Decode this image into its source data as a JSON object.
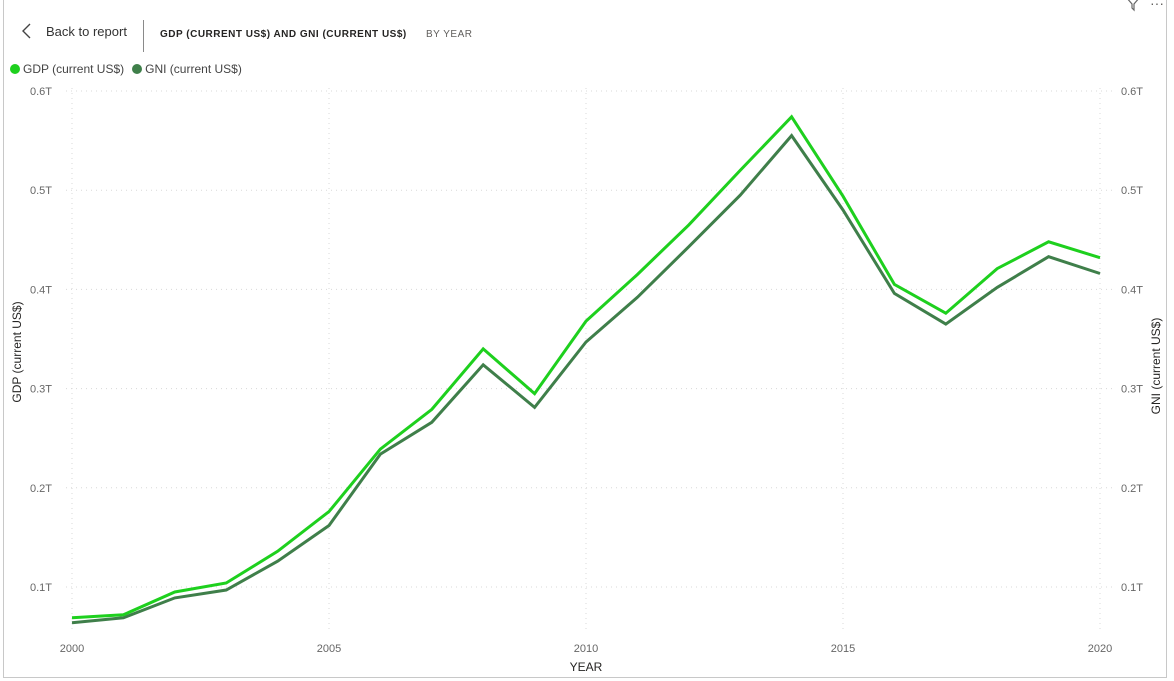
{
  "header": {
    "back_label": "Back to report",
    "title": "GDP (CURRENT US$) AND GNI (CURRENT US$)",
    "subtitle": "BY YEAR"
  },
  "icons": [
    "filter-icon",
    "more-options-icon"
  ],
  "colors": {
    "gdp": "#1ED01E",
    "gni": "#3F7F4A",
    "grid": "#d8d8d8"
  },
  "chart_data": {
    "type": "line",
    "title": "GDP (CURRENT US$) AND GNI (CURRENT US$) BY YEAR",
    "xlabel": "YEAR",
    "ylabel": "GDP (current US$)",
    "ylabel_right": "GNI (current US$)",
    "x": [
      2000,
      2001,
      2002,
      2003,
      2004,
      2005,
      2006,
      2007,
      2008,
      2009,
      2010,
      2011,
      2012,
      2013,
      2014,
      2015,
      2016,
      2017,
      2018,
      2019,
      2020
    ],
    "x_ticks": [
      "2000",
      "2005",
      "2010",
      "2015",
      "2020"
    ],
    "y_ticks": [
      "0.1T",
      "0.2T",
      "0.3T",
      "0.4T",
      "0.5T",
      "0.6T"
    ],
    "ylim": [
      0.05,
      0.6
    ],
    "unit": "T",
    "legend_position": "top-left",
    "grid": true,
    "series": [
      {
        "name": "GDP (current US$)",
        "values": [
          0.069,
          0.072,
          0.095,
          0.104,
          0.136,
          0.176,
          0.239,
          0.279,
          0.34,
          0.295,
          0.368,
          0.415,
          0.465,
          0.52,
          0.574,
          0.494,
          0.405,
          0.376,
          0.421,
          0.448,
          0.432
        ]
      },
      {
        "name": "GNI (current US$)",
        "values": [
          0.064,
          0.069,
          0.089,
          0.097,
          0.126,
          0.162,
          0.234,
          0.266,
          0.324,
          0.281,
          0.347,
          0.392,
          0.443,
          0.495,
          0.555,
          0.48,
          0.396,
          0.365,
          0.402,
          0.433,
          0.416
        ]
      }
    ]
  }
}
